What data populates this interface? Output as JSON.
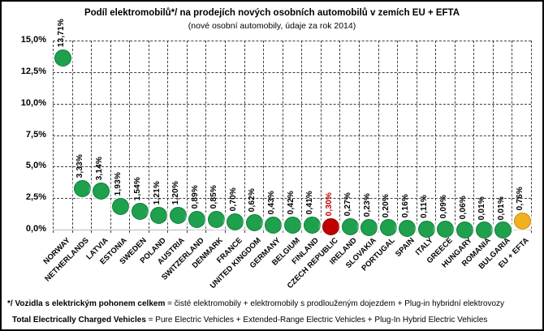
{
  "chart_data": {
    "type": "scatter",
    "title": "Podíl elektromobilů*/ na prodejích nových osobních automobilů v zemích EU + EFTA",
    "subtitle": "(nové osobní automobily, údaje za rok 2014)",
    "xlabel": "",
    "ylabel": "",
    "ylim": [
      0,
      15
    ],
    "ytick_step": 2.5,
    "grid": "dashed-both-axes",
    "legend": "none",
    "yticks": [
      {
        "value": 0,
        "label": "0,0%"
      },
      {
        "value": 2.5,
        "label": "2,5%"
      },
      {
        "value": 5,
        "label": "5,0%"
      },
      {
        "value": 7.5,
        "label": "7,5%"
      },
      {
        "value": 10,
        "label": "10,0%"
      },
      {
        "value": 12.5,
        "label": "12,5%"
      },
      {
        "value": 15,
        "label": "15,0%"
      }
    ],
    "points": [
      {
        "country": "NORWAY",
        "value": 13.71,
        "label": "13,71%",
        "color": "green"
      },
      {
        "country": "NETHERLANDS",
        "value": 3.33,
        "label": "3,33%",
        "color": "green"
      },
      {
        "country": "LATVIA",
        "value": 3.14,
        "label": "3,14%",
        "color": "green"
      },
      {
        "country": "ESTONIA",
        "value": 1.93,
        "label": "1,93%",
        "color": "green"
      },
      {
        "country": "SWEDEN",
        "value": 1.54,
        "label": "1,54%",
        "color": "green"
      },
      {
        "country": "POLAND",
        "value": 1.21,
        "label": "1,21%",
        "color": "green"
      },
      {
        "country": "AUSTRIA",
        "value": 1.2,
        "label": "1,20%",
        "color": "green"
      },
      {
        "country": "SWITZERLAND",
        "value": 0.89,
        "label": "0,89%",
        "color": "green"
      },
      {
        "country": "DENMARK",
        "value": 0.85,
        "label": "0,85%",
        "color": "green"
      },
      {
        "country": "FRANCE",
        "value": 0.7,
        "label": "0,70%",
        "color": "green"
      },
      {
        "country": "UNITED KINGDOM",
        "value": 0.62,
        "label": "0,62%",
        "color": "green"
      },
      {
        "country": "GERMANY",
        "value": 0.43,
        "label": "0,43%",
        "color": "green"
      },
      {
        "country": "BELGIUM",
        "value": 0.42,
        "label": "0,42%",
        "color": "green"
      },
      {
        "country": "FINLAND",
        "value": 0.41,
        "label": "0,41%",
        "color": "green"
      },
      {
        "country": "CZECH REPUBLIC",
        "value": 0.3,
        "label": "0,30%",
        "color": "red"
      },
      {
        "country": "IRELAND",
        "value": 0.27,
        "label": "0,27%",
        "color": "green"
      },
      {
        "country": "SLOVAKIA",
        "value": 0.23,
        "label": "0,23%",
        "color": "green"
      },
      {
        "country": "PORTUGAL",
        "value": 0.2,
        "label": "0,20%",
        "color": "green"
      },
      {
        "country": "SPAIN",
        "value": 0.16,
        "label": "0,16%",
        "color": "green"
      },
      {
        "country": "ITALY",
        "value": 0.11,
        "label": "0,11%",
        "color": "green"
      },
      {
        "country": "GREECE",
        "value": 0.09,
        "label": "0,09%",
        "color": "green"
      },
      {
        "country": "HUNGARY",
        "value": 0.06,
        "label": "0,06%",
        "color": "green"
      },
      {
        "country": "ROMANIA",
        "value": 0.01,
        "label": "0,01%",
        "color": "green"
      },
      {
        "country": "BULGARIA",
        "value": 0.01,
        "label": "0,01%",
        "color": "green"
      },
      {
        "country": "EU + EFTA",
        "value": 0.76,
        "label": "0,76%",
        "color": "yellow"
      }
    ],
    "colors": {
      "green": "#1FA04D",
      "green_border": "#107C3C",
      "red": "#C00000",
      "red_border": "#8A0000",
      "yellow": "#F2B01E",
      "yellow_border": "#BF8F1D",
      "label_default": "#000000",
      "label_highlight": "#C00000",
      "gridline": "#404040",
      "baseline": "#B8B8B8"
    }
  },
  "footnotes": {
    "line1_bold": "*/ Vozidla s elektrickým pohonem celkem",
    "line1_text": " = čisté elektromobily + elektromobily s prodlouženým dojezdem + Plug-in hybridní elektrovozy",
    "line2_bold": "Total Electrically Charged Vehicles",
    "line2_text": " = Pure Electric Vehicles + Extended-Range Electric Vehicles + Plug-In Hybrid Electric Vehicles"
  }
}
